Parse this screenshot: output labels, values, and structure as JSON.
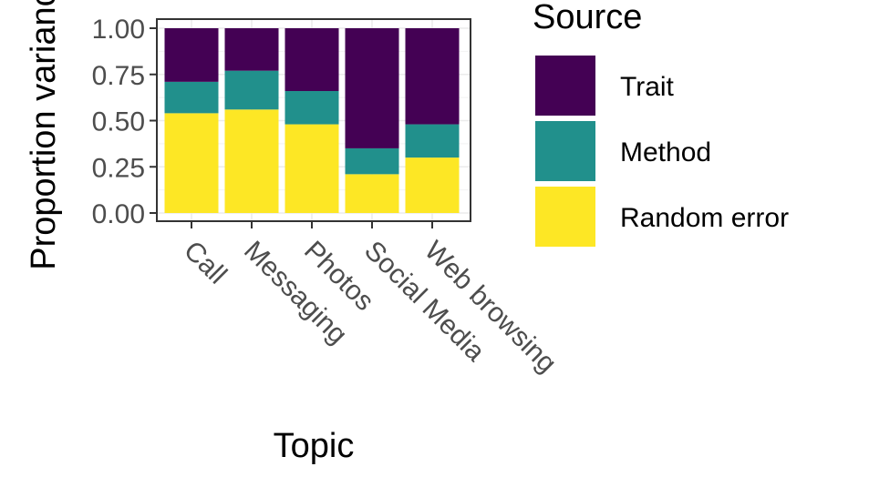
{
  "chart_data": {
    "type": "bar",
    "stacked": true,
    "xlabel": "Topic",
    "ylabel": "Proportion variance",
    "ylim": [
      0,
      1
    ],
    "yticks": [
      "0.00",
      "0.25",
      "0.50",
      "0.75",
      "1.00"
    ],
    "categories": [
      "Call",
      "Messaging",
      "Photos",
      "Social Media",
      "Web browsing"
    ],
    "series": [
      {
        "name": "Random error",
        "color": "#FDE725",
        "values": [
          0.54,
          0.56,
          0.48,
          0.21,
          0.3
        ]
      },
      {
        "name": "Method",
        "color": "#21908C",
        "values": [
          0.17,
          0.21,
          0.18,
          0.14,
          0.18
        ]
      },
      {
        "name": "Trait",
        "color": "#440154",
        "values": [
          0.29,
          0.23,
          0.34,
          0.65,
          0.52
        ]
      }
    ],
    "legend": {
      "title": "Source",
      "position": "right",
      "order": [
        "Trait",
        "Method",
        "Random error"
      ]
    },
    "grid": true,
    "theme": "bw"
  }
}
